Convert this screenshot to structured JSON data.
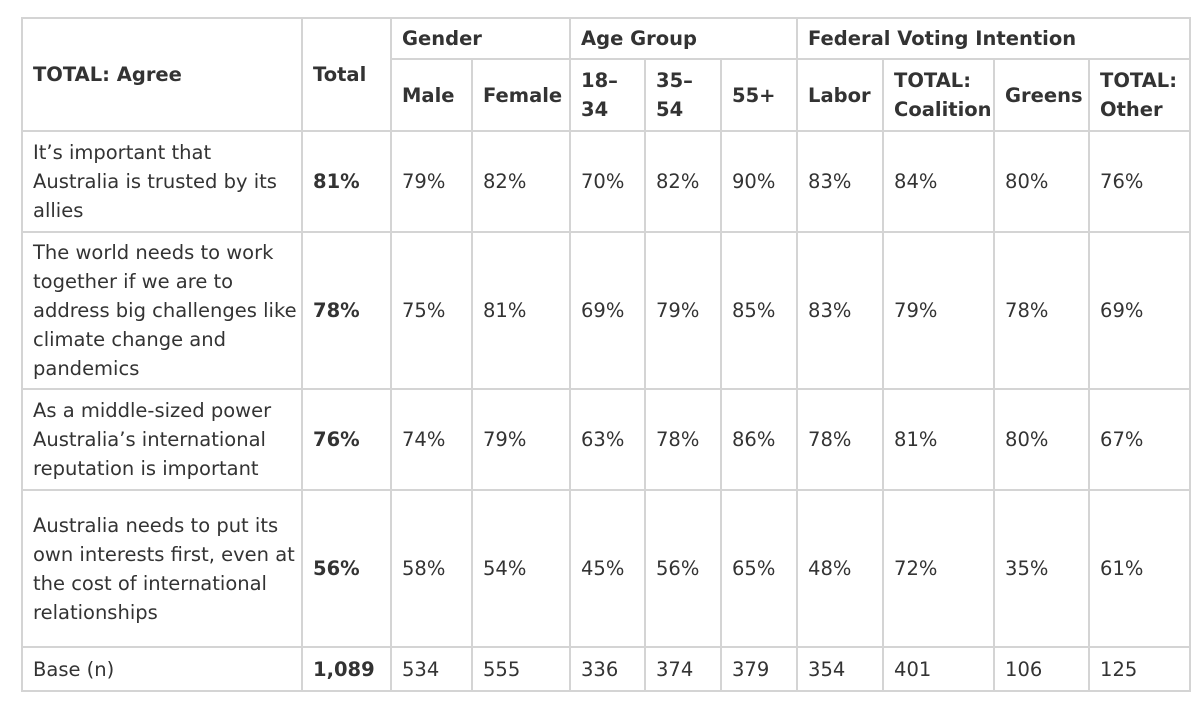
{
  "table": {
    "title": "TOTAL: Agree",
    "total_header": "Total",
    "groups": {
      "gender": "Gender",
      "age": "Age Group",
      "voting": "Federal Voting Intention"
    },
    "subheaders": {
      "male": "Male",
      "female": "Female",
      "age_18_34": "18–34",
      "age_35_54": "35–54",
      "age_55_plus": "55+",
      "labor": "Labor",
      "coalition": "TOTAL: Coalition",
      "greens": "Greens",
      "other": "TOTAL: Other"
    },
    "rows": [
      {
        "statement": "It’s important that Australia is trusted by its allies",
        "values": [
          "81%",
          "79%",
          "82%",
          "70%",
          "82%",
          "90%",
          "83%",
          "84%",
          "80%",
          "76%"
        ]
      },
      {
        "statement": "The world needs to work together if we are to address big challenges like climate change and pandemics",
        "values": [
          "78%",
          "75%",
          "81%",
          "69%",
          "79%",
          "85%",
          "83%",
          "79%",
          "78%",
          "69%"
        ]
      },
      {
        "statement": "As a middle-sized power Australia’s international reputation is important",
        "values": [
          "76%",
          "74%",
          "79%",
          "63%",
          "78%",
          "86%",
          "78%",
          "81%",
          "80%",
          "67%"
        ]
      },
      {
        "statement": "Australia needs to put its own interests first, even at the cost of international relationships",
        "values": [
          "56%",
          "58%",
          "54%",
          "45%",
          "56%",
          "65%",
          "48%",
          "72%",
          "35%",
          "61%"
        ]
      },
      {
        "statement": "Base (n)",
        "values": [
          "1,089",
          "534",
          "555",
          "336",
          "374",
          "379",
          "354",
          "401",
          "106",
          "125"
        ]
      }
    ]
  }
}
